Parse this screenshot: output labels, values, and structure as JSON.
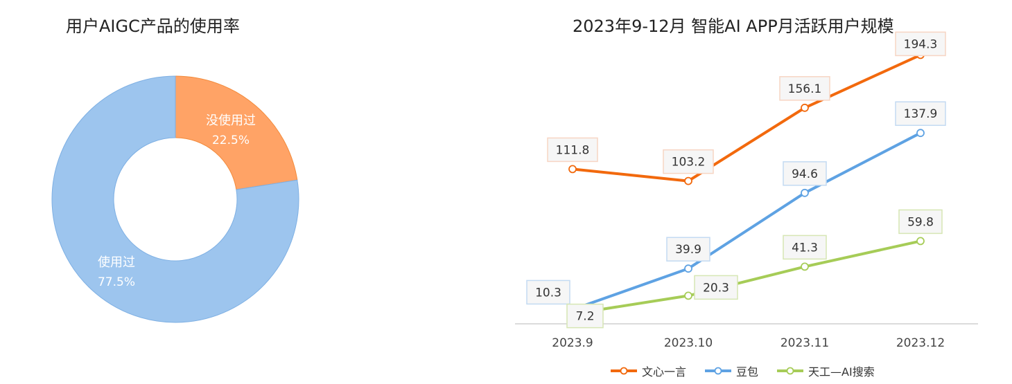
{
  "chart_data": [
    {
      "type": "pie",
      "title": "用户AIGC产品的使用率",
      "slices": [
        {
          "label": "没使用过",
          "value_label": "22.5%",
          "value": 22.5,
          "color": "#FFA366"
        },
        {
          "label": "使用过",
          "value_label": "77.5%",
          "value": 77.5,
          "color": "#9DC5EE"
        }
      ]
    },
    {
      "type": "line",
      "title": "2023年9-12月 智能AI APP月活跃用户规模",
      "categories": [
        "2023.9",
        "2023.10",
        "2023.11",
        "2023.12"
      ],
      "ylim": [
        0,
        200
      ],
      "grid": false,
      "legend_position": "bottom",
      "series": [
        {
          "name": "文心一言",
          "color": "#F2690D",
          "label_border": "#F7D5C4",
          "values": [
            111.8,
            103.2,
            156.1,
            194.3
          ]
        },
        {
          "name": "豆包",
          "color": "#5EA2E3",
          "label_border": "#C3DAF2",
          "values": [
            10.3,
            39.9,
            94.6,
            137.9
          ]
        },
        {
          "name": "天工—AI搜索",
          "color": "#A6CC57",
          "label_border": "#D6E6B4",
          "values": [
            7.2,
            20.3,
            41.3,
            59.8
          ]
        }
      ]
    }
  ]
}
